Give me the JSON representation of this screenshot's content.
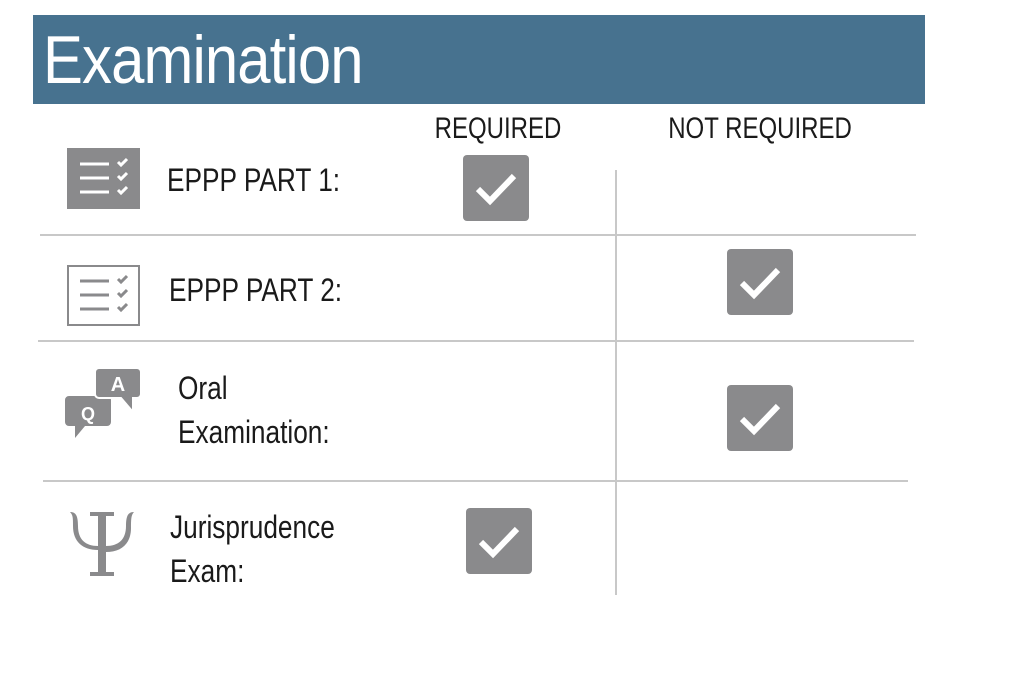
{
  "header": {
    "title": "Examination",
    "color": "#47728f"
  },
  "columns": {
    "required": "REQUIRED",
    "not_required": "NOT REQUIRED"
  },
  "rows": [
    {
      "label_lines": [
        "EPPP PART 1:"
      ],
      "icon": "checklist-filled-icon",
      "status": "required"
    },
    {
      "label_lines": [
        "EPPP PART 2:"
      ],
      "icon": "checklist-outline-icon",
      "status": "not_required"
    },
    {
      "label_lines": [
        "Oral",
        "Examination:"
      ],
      "icon": "qa-speech-bubbles-icon",
      "status": "not_required"
    },
    {
      "label_lines": [
        "Jurisprudence",
        "Exam:"
      ],
      "icon": "psi-icon",
      "status": "required"
    }
  ],
  "checkbox_color": "#8a8a8c"
}
